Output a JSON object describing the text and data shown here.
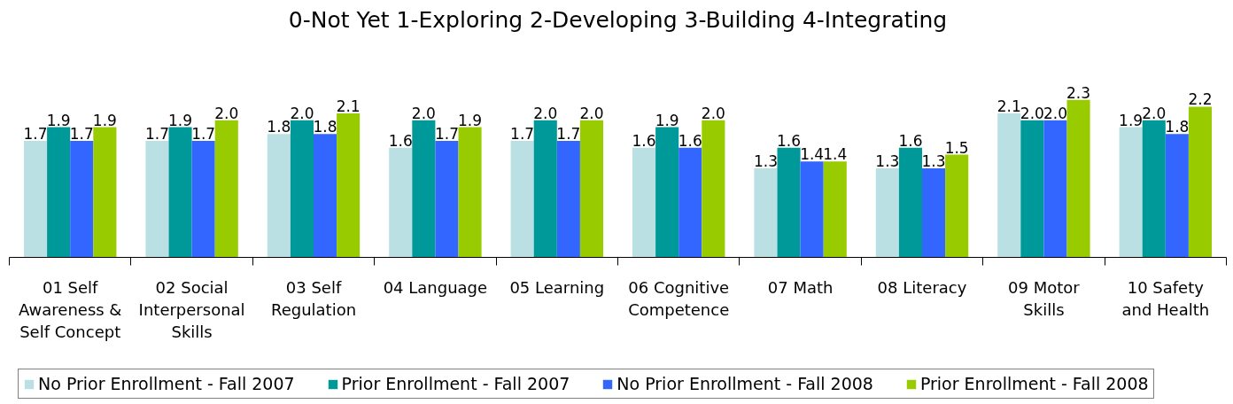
{
  "chart_data": {
    "type": "bar",
    "title": "0-Not Yet 1-Exploring 2-Developing 3-Building 4-Integrating",
    "categories": [
      "01 Self Awareness & Self Concept",
      "02 Social Interpersonal Skills",
      "03 Self Regulation",
      "04 Language",
      "05 Learning",
      "06 Cognitive Competence",
      "07 Math",
      "08 Literacy",
      "09 Motor Skills",
      "10 Safety and Health"
    ],
    "series": [
      {
        "name": "No Prior Enrollment - Fall 2007",
        "color": "#bbe0e3",
        "values": [
          1.7,
          1.7,
          1.8,
          1.6,
          1.7,
          1.6,
          1.3,
          1.3,
          2.1,
          1.9
        ],
        "value_labels": [
          "1.7",
          "1.7",
          "1.8",
          "1.6",
          "1.7",
          "1.6",
          "1.3",
          "1.3",
          "2.1",
          "1.9"
        ]
      },
      {
        "name": "Prior Enrollment - Fall 2007",
        "color": "#009999",
        "values": [
          1.9,
          1.9,
          2.0,
          2.0,
          2.0,
          1.9,
          1.6,
          1.6,
          2.0,
          2.0
        ],
        "value_labels": [
          "1.9",
          "1.9",
          "2.0",
          "2.0",
          "2.0",
          "1.9",
          "1.6",
          "1.6",
          "2.0",
          "2.0"
        ]
      },
      {
        "name": "No Prior Enrollment - Fall 2008",
        "color": "#3366ff",
        "values": [
          1.7,
          1.7,
          1.8,
          1.7,
          1.7,
          1.6,
          1.4,
          1.3,
          2.0,
          1.8
        ],
        "value_labels": [
          "1.7",
          "1.7",
          "1.8",
          "1.7",
          "1.7",
          "1.6",
          "1.4",
          "1.3",
          "2.0",
          "1.8"
        ]
      },
      {
        "name": "Prior Enrollment - Fall 2008",
        "color": "#99cc00",
        "values": [
          1.9,
          2.0,
          2.1,
          1.9,
          2.0,
          2.0,
          1.4,
          1.5,
          2.3,
          2.2
        ],
        "value_labels": [
          "1.9",
          "2.0",
          "2.1",
          "1.9",
          "2.0",
          "2.0",
          "1.4",
          "1.5",
          "2.3",
          "2.2"
        ]
      }
    ],
    "legend": "bottom",
    "tick_labels": "x"
  }
}
